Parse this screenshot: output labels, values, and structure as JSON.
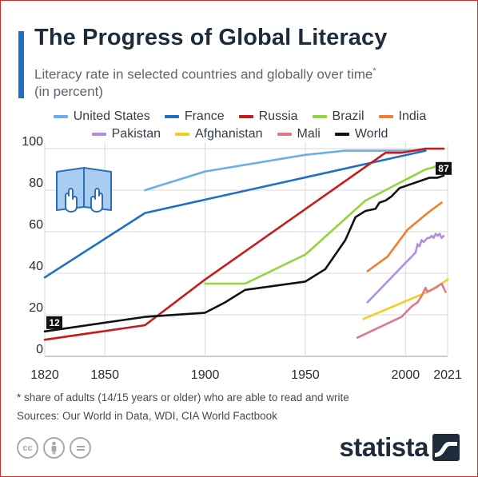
{
  "header": {
    "title": "The Progress of Global Literacy",
    "subtitle": "Literacy rate in selected countries and globally over time",
    "subtitle_marker": "*",
    "subtitle_line2": "(in percent)"
  },
  "legend": [
    {
      "name": "United States",
      "color": "#6aaee8"
    },
    {
      "name": "France",
      "color": "#1f6fc5"
    },
    {
      "name": "Russia",
      "color": "#c8191b"
    },
    {
      "name": "Brazil",
      "color": "#8fd63a"
    },
    {
      "name": "India",
      "color": "#f07f32"
    },
    {
      "name": "Pakistan",
      "color": "#b18ee0"
    },
    {
      "name": "Afghanistan",
      "color": "#f5cd1e"
    },
    {
      "name": "Mali",
      "color": "#e0788a"
    },
    {
      "name": "World",
      "color": "#111111"
    }
  ],
  "chart_data": {
    "type": "line",
    "x_ticks": [
      1820,
      1850,
      1900,
      1950,
      2000,
      2021
    ],
    "y_ticks": [
      0,
      20,
      40,
      60,
      80,
      100
    ],
    "xlim": [
      1820,
      2021
    ],
    "ylim": [
      0,
      100
    ],
    "grid": true,
    "legend_position": "top",
    "labels": [
      {
        "series": "World",
        "year": 1820,
        "text": "12"
      },
      {
        "series": "World",
        "year": 2019,
        "text": "87"
      }
    ],
    "series": [
      {
        "name": "United States",
        "color": "#6aaee8",
        "points": [
          [
            1870,
            80
          ],
          [
            1900,
            89
          ],
          [
            1950,
            97
          ],
          [
            1970,
            99
          ],
          [
            2010,
            99
          ]
        ]
      },
      {
        "name": "France",
        "color": "#1f6fc5",
        "points": [
          [
            1820,
            38
          ],
          [
            1870,
            69
          ],
          [
            2010,
            99
          ]
        ]
      },
      {
        "name": "Russia",
        "color": "#c8191b",
        "points": [
          [
            1820,
            8
          ],
          [
            1870,
            15
          ],
          [
            1900,
            37
          ],
          [
            1990,
            98
          ],
          [
            1998,
            98
          ],
          [
            2010,
            100
          ],
          [
            2019,
            100
          ]
        ]
      },
      {
        "name": "Brazil",
        "color": "#8fd63a",
        "points": [
          [
            1900,
            35
          ],
          [
            1920,
            35
          ],
          [
            1950,
            49
          ],
          [
            1980,
            75
          ],
          [
            2000,
            85
          ],
          [
            2010,
            90
          ],
          [
            2014,
            91
          ],
          [
            2018,
            93
          ],
          [
            2019,
            93
          ]
        ]
      },
      {
        "name": "India",
        "color": "#f07f32",
        "points": [
          [
            1981,
            41
          ],
          [
            1991,
            48
          ],
          [
            2001,
            61
          ],
          [
            2011,
            69
          ],
          [
            2018,
            74
          ]
        ]
      },
      {
        "name": "Pakistan",
        "color": "#b18ee0",
        "points": [
          [
            1981,
            26
          ],
          [
            2005,
            50
          ],
          [
            2006,
            54
          ],
          [
            2007,
            53
          ],
          [
            2008,
            56
          ],
          [
            2009,
            55
          ],
          [
            2010,
            56
          ],
          [
            2011,
            57
          ],
          [
            2012,
            57
          ],
          [
            2013,
            58
          ],
          [
            2014,
            57
          ],
          [
            2015,
            59
          ],
          [
            2016,
            58
          ],
          [
            2017,
            59
          ],
          [
            2018,
            57
          ],
          [
            2019,
            58
          ]
        ]
      },
      {
        "name": "Afghanistan",
        "color": "#f5cd1e",
        "points": [
          [
            1979,
            18
          ],
          [
            2011,
            31
          ],
          [
            2018,
            35
          ],
          [
            2021,
            37
          ]
        ]
      },
      {
        "name": "Mali",
        "color": "#e0788a",
        "points": [
          [
            1976,
            9
          ],
          [
            1998,
            19
          ],
          [
            2003,
            24
          ],
          [
            2006,
            26
          ],
          [
            2008,
            29
          ],
          [
            2010,
            33
          ],
          [
            2011,
            31
          ],
          [
            2015,
            33
          ],
          [
            2018,
            35
          ],
          [
            2020,
            31
          ]
        ]
      },
      {
        "name": "World",
        "color": "#111111",
        "points": [
          [
            1820,
            12
          ],
          [
            1870,
            19
          ],
          [
            1900,
            21
          ],
          [
            1910,
            26
          ],
          [
            1920,
            32
          ],
          [
            1950,
            36
          ],
          [
            1960,
            42
          ],
          [
            1970,
            56
          ],
          [
            1975,
            67
          ],
          [
            1980,
            70
          ],
          [
            1985,
            71
          ],
          [
            1987,
            74
          ],
          [
            1990,
            75
          ],
          [
            1993,
            77
          ],
          [
            1995,
            79
          ],
          [
            1997,
            81
          ],
          [
            2000,
            82
          ],
          [
            2003,
            83
          ],
          [
            2006,
            84
          ],
          [
            2009,
            85
          ],
          [
            2012,
            86
          ],
          [
            2016,
            86
          ],
          [
            2019,
            87
          ]
        ]
      }
    ]
  },
  "footer": {
    "note": "* share of adults (14/15 years or older) who are able to read and write",
    "sources": "Sources: Our World in Data, WDI, CIA World Factbook",
    "brand": "statista",
    "license_icons": [
      "cc-icon",
      "attribution-icon",
      "no-derivatives-icon"
    ]
  }
}
